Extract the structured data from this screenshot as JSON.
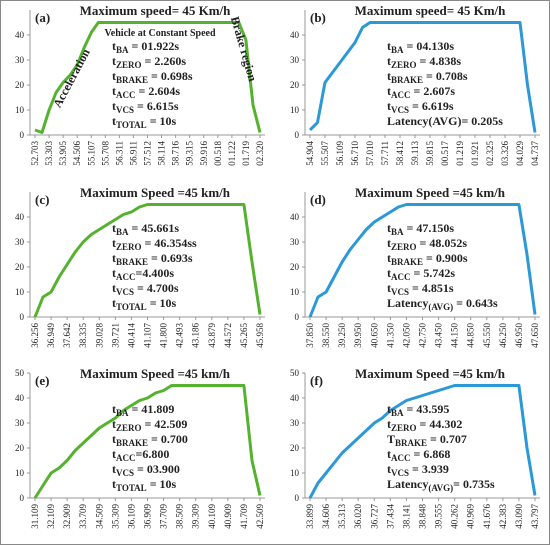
{
  "chart_data": [
    {
      "type": "line",
      "panel": "(a)",
      "title": "Maximum speed= 45 Km/h",
      "color": "#55b22f",
      "categories": [
        "52.703",
        null,
        "53.303",
        null,
        "53.905",
        null,
        "54.506",
        null,
        "55.107",
        null,
        "55.708",
        null,
        "56.311",
        null,
        "56.911",
        null,
        "57.512",
        null,
        "58.114",
        null,
        "58.716",
        null,
        "59.315",
        null,
        "59.916",
        null,
        "00.518",
        null,
        "01.122",
        null,
        "01.719",
        null,
        "02.320"
      ],
      "values": [
        2,
        1,
        10,
        17,
        21,
        24,
        28,
        35,
        41,
        45,
        45,
        45,
        45,
        45,
        45,
        45,
        45,
        45,
        45,
        45,
        45,
        45,
        45,
        45,
        45,
        45,
        45,
        45,
        45,
        45,
        38,
        12,
        1
      ],
      "ylim": [
        0,
        50
      ],
      "yticks": [
        0,
        10,
        20,
        30,
        40
      ],
      "notes": [
        "Vehicle at Constant Speed",
        "Acceleration",
        "Brake region"
      ],
      "annotations": [
        {
          "base": "t",
          "sub": "BA",
          "text": " = 01.922s"
        },
        {
          "base": "t",
          "sub": "ZERO",
          "text": " = 2.260s"
        },
        {
          "base": "t",
          "sub": "BRAKE",
          "text": " = 0.698s"
        },
        {
          "base": "t",
          "sub": "ACC",
          "text": " = 2.604s"
        },
        {
          "base": "t",
          "sub": "VCS",
          "text": " = 6.615s"
        },
        {
          "base": "t",
          "sub": "TOTAL",
          "text": " = 10s"
        }
      ]
    },
    {
      "type": "line",
      "panel": "(b)",
      "title": "Maximum speed= 45 Km/h",
      "color": "#2b98d8",
      "categories": [
        "54.904",
        null,
        "55.507",
        null,
        "56.109",
        null,
        "56.710",
        null,
        "57.010",
        null,
        "57.711",
        null,
        "58.412",
        null,
        "59.113",
        null,
        "59.815",
        null,
        "00.517",
        null,
        "01.219",
        null,
        "01.921",
        null,
        "02.325",
        null,
        "03.326",
        null,
        "04.029",
        null,
        "04.737"
      ],
      "values": [
        2,
        5,
        21,
        25,
        29,
        33,
        37,
        43,
        45,
        45,
        45,
        45,
        45,
        45,
        45,
        45,
        45,
        45,
        45,
        45,
        45,
        45,
        45,
        45,
        45,
        45,
        45,
        45,
        45,
        20,
        1
      ],
      "ylim": [
        0,
        50
      ],
      "yticks": [
        0,
        10,
        20,
        30,
        40
      ],
      "annotations": [
        {
          "base": "t",
          "sub": "BA",
          "text": " = 04.130s"
        },
        {
          "base": "t",
          "sub": "ZERO",
          "text": " = 4.838s"
        },
        {
          "base": "t",
          "sub": "BRAKE",
          "text": " = 0.708s"
        },
        {
          "base": "t",
          "sub": "ACC",
          "text": " = 2.607s"
        },
        {
          "base": "t",
          "sub": "VCS",
          "text": " = 6.619s"
        },
        {
          "base": "Latency(AVG)= 0.205s"
        }
      ]
    },
    {
      "type": "line",
      "panel": "(c)",
      "title": "Maximum Speed =45 km/h",
      "color": "#55b22f",
      "categories": [
        "36.256",
        null,
        "36.949",
        null,
        "37.642",
        null,
        "38.335",
        null,
        "39.028",
        null,
        "39.721",
        null,
        "40.414",
        null,
        "41.107",
        null,
        "41.800",
        null,
        "42.493",
        null,
        "43.186",
        null,
        "43.879",
        null,
        "44.572",
        null,
        "45.265",
        null,
        "45.958"
      ],
      "values": [
        0,
        8,
        10,
        16,
        21,
        26,
        30,
        33,
        35,
        37,
        39,
        41,
        42,
        44,
        45,
        45,
        45,
        45,
        45,
        45,
        45,
        45,
        45,
        45,
        45,
        45,
        45,
        22,
        1
      ],
      "ylim": [
        0,
        50
      ],
      "yticks": [
        0,
        10,
        20,
        30,
        40
      ],
      "annotations": [
        {
          "base": "t",
          "sub": "BA",
          "text": " = 45.661s"
        },
        {
          "base": "t",
          "sub": "ZERO",
          "text": " = 46.354ss"
        },
        {
          "base": "t",
          "sub": "BRAKE",
          "text": " = 0.693s"
        },
        {
          "base": "t",
          "sub": "ACC",
          "text": "=4.400s"
        },
        {
          "base": "t",
          "sub": "VCS",
          "text": " = 4.700s"
        },
        {
          "base": "t",
          "sub": "TOTAL",
          "text": " = 10s"
        }
      ]
    },
    {
      "type": "line",
      "panel": "(d)",
      "title": "Maximum Speed =45 km/h",
      "color": "#2b98d8",
      "categories": [
        "37.850",
        null,
        "38.550",
        null,
        "39.250",
        null,
        "39.950",
        null,
        "40.650",
        null,
        "41.350",
        null,
        "42.050",
        null,
        "42.750",
        null,
        "43.450",
        null,
        "44.150",
        null,
        "44.850",
        null,
        "45.550",
        null,
        "46.250",
        null,
        "46.950",
        null,
        "47.650"
      ],
      "values": [
        0,
        8,
        10,
        16,
        22,
        27,
        31,
        35,
        38,
        40,
        42,
        44,
        45,
        45,
        45,
        45,
        45,
        45,
        45,
        45,
        45,
        45,
        45,
        45,
        45,
        45,
        45,
        25,
        1
      ],
      "ylim": [
        0,
        50
      ],
      "yticks": [
        0,
        10,
        20,
        30,
        40
      ],
      "annotations": [
        {
          "base": "t",
          "sub": "BA",
          "text": " = 47.150s"
        },
        {
          "base": "t",
          "sub": "ZERO",
          "text": " = 48.052s"
        },
        {
          "base": "t",
          "sub": "BRAKE",
          "text": " = 0.900s"
        },
        {
          "base": "t",
          "sub": "ACC",
          "text": " = 5.742s"
        },
        {
          "base": "t",
          "sub": "VCS",
          "text": " = 4.851s"
        },
        {
          "base": "Latency",
          "sub": "(AVG)",
          "text": " = 0.643s"
        }
      ]
    },
    {
      "type": "line",
      "panel": "(e)",
      "title": "Maximum Speed =45 km/h",
      "color": "#55b22f",
      "categories": [
        "31.109",
        null,
        "32.109",
        null,
        "32.909",
        null,
        "33.709",
        null,
        "34.509",
        null,
        "35.309",
        null,
        "36.109",
        null,
        "36.909",
        null,
        "37.709",
        null,
        "38.509",
        null,
        "39.309",
        null,
        "40.109",
        null,
        "40.909",
        null,
        "41.709",
        null,
        "42.509"
      ],
      "values": [
        0,
        5,
        10,
        12,
        15,
        19,
        22,
        25,
        28,
        30,
        32,
        35,
        37,
        39,
        40,
        42,
        43,
        45,
        45,
        45,
        45,
        45,
        45,
        45,
        45,
        45,
        45,
        15,
        1
      ],
      "ylim": [
        0,
        50
      ],
      "yticks": [
        0,
        10,
        20,
        30,
        40,
        50
      ],
      "annotations": [
        {
          "base": "t",
          "sub": "BA",
          "text": " = 41.809"
        },
        {
          "base": "t",
          "sub": "ZERO",
          "text": " = 42.509"
        },
        {
          "base": "t",
          "sub": "BRAKE",
          "text": " = 0.700"
        },
        {
          "base": "t",
          "sub": "ACC",
          "text": "=6.800"
        },
        {
          "base": "t",
          "sub": "VCS",
          "text": " = 03.900"
        },
        {
          "base": "t",
          "sub": "TOTAL",
          "text": " = 10s"
        }
      ]
    },
    {
      "type": "line",
      "panel": "(f)",
      "title": "Maximum Speed =45 km/h",
      "color": "#2b98d8",
      "categories": [
        "33.899",
        null,
        "34.606",
        null,
        "35.313",
        null,
        "36.020",
        null,
        "36.727",
        null,
        "37.434",
        null,
        "38.141",
        null,
        "38.848",
        null,
        "39.555",
        null,
        "40.262",
        null,
        "40.969",
        null,
        "41.676",
        null,
        "42.383",
        null,
        "43.090",
        null,
        "43.797"
      ],
      "values": [
        0,
        6,
        10,
        14,
        18,
        21,
        24,
        27,
        30,
        32,
        35,
        37,
        39,
        40,
        41,
        42,
        43,
        44,
        45,
        45,
        45,
        45,
        45,
        45,
        45,
        45,
        45,
        20,
        1
      ],
      "ylim": [
        0,
        50
      ],
      "yticks": [
        0,
        10,
        20,
        30,
        40,
        50
      ],
      "annotations": [
        {
          "base": "t",
          "sub": "BA",
          "text": " = 43.595"
        },
        {
          "base": "t",
          "sub": "ZERO",
          "text": " = 44.302"
        },
        {
          "base": "T",
          "sub": "BRAKE",
          "text": " = 0.707"
        },
        {
          "base": "t",
          "sub": "ACC",
          "text": " = 6.868"
        },
        {
          "base": "t",
          "sub": "VCS",
          "text": " = 3.939"
        },
        {
          "base": "Latency",
          "sub": "(AVG)",
          "text": "= 0.735s"
        }
      ]
    }
  ]
}
